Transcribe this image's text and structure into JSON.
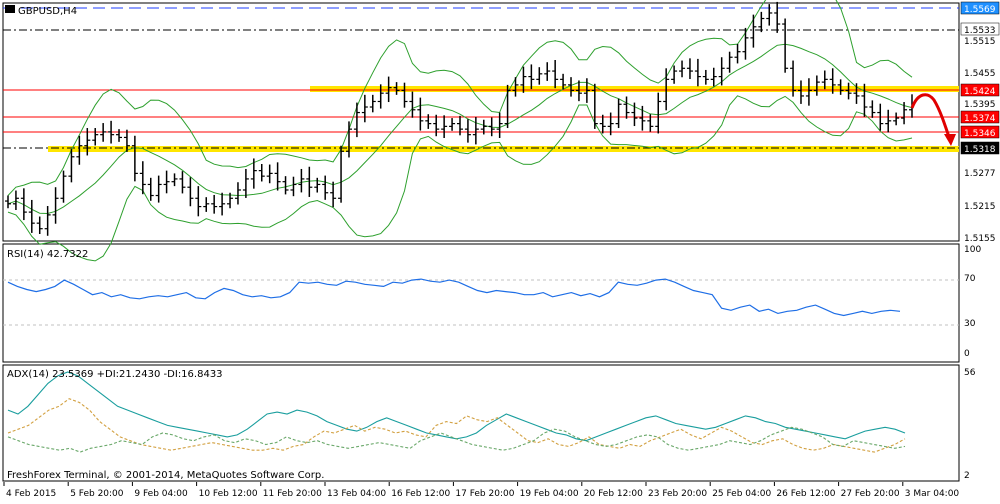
{
  "main": {
    "symbol_label": "GBPUSD,H4",
    "price_scale": [
      {
        "label": "1.5569",
        "boxed": true,
        "bg": "#1e90ff",
        "fg": "#ffffff"
      },
      {
        "label": "1.5533",
        "boxed": true,
        "bg": "#ffffff",
        "fg": "#000000"
      },
      {
        "label": "1.5515",
        "boxed": false
      },
      {
        "label": "1.5455",
        "boxed": false
      },
      {
        "label": "1.5424",
        "boxed": true,
        "bg": "#ff0000",
        "fg": "#ffffff"
      },
      {
        "label": "1.5395",
        "boxed": false
      },
      {
        "label": "1.5374",
        "boxed": true,
        "bg": "#ff0000",
        "fg": "#ffffff"
      },
      {
        "label": "1.5346",
        "boxed": true,
        "bg": "#ff0000",
        "fg": "#ffffff"
      },
      {
        "label": "1.5318",
        "boxed": true,
        "bg": "#000000",
        "fg": "#ffffff"
      },
      {
        "label": "1.5277",
        "boxed": false
      },
      {
        "label": "1.5215",
        "boxed": false
      },
      {
        "label": "1.5155",
        "boxed": false
      }
    ],
    "levels": {
      "resistance_band": 1.5424,
      "support_band": 1.5318,
      "red_lines": [
        1.5424,
        1.5374,
        1.5346
      ],
      "blue_dashed": 1.5569,
      "black_dashdot": [
        1.5533,
        1.5318
      ]
    },
    "forecast": "down"
  },
  "rsi": {
    "label": "RSI(14) 42.7322",
    "scale": [
      "100",
      "70",
      "30",
      "0"
    ],
    "levels": [
      70,
      30
    ]
  },
  "adx": {
    "label": "ADX(14) 23.5369 +DI:21.2430 -DI:16.8433",
    "scale": [
      "56",
      "2"
    ],
    "copyright": "FreshForex Terminal, © 2001-2014, MetaQuotes Software Corp."
  },
  "time_axis": [
    "4 Feb 2015",
    "5 Feb 20:00",
    "9 Feb 04:00",
    "10 Feb 12:00",
    "11 Feb 20:00",
    "13 Feb 04:00",
    "16 Feb 12:00",
    "17 Feb 20:00",
    "19 Feb 04:00",
    "20 Feb 12:00",
    "23 Feb 20:00",
    "25 Feb 04:00",
    "26 Feb 12:00",
    "27 Feb 20:00",
    "3 Mar 04:00"
  ],
  "chart_data": {
    "type": "candlestick",
    "bar_closes": [
      1.5215,
      1.5225,
      1.52,
      1.518,
      1.517,
      1.5195,
      1.5225,
      1.5265,
      1.53,
      1.532,
      1.533,
      1.534,
      1.5345,
      1.534,
      1.5335,
      1.532,
      1.527,
      1.525,
      1.523,
      1.525,
      1.5255,
      1.526,
      1.5245,
      1.5225,
      1.521,
      1.5215,
      1.521,
      1.5215,
      1.5225,
      1.524,
      1.526,
      1.5275,
      1.5265,
      1.527,
      1.5255,
      1.524,
      1.525,
      1.526,
      1.5245,
      1.525,
      1.5235,
      1.5225,
      1.531,
      1.535,
      1.538,
      1.539,
      1.54,
      1.5415,
      1.5425,
      1.542,
      1.54,
      1.5385,
      1.5365,
      1.536,
      1.535,
      1.5355,
      1.536,
      1.535,
      1.534,
      1.535,
      1.5355,
      1.535,
      1.536,
      1.542,
      1.543,
      1.5445,
      1.544,
      1.545,
      1.5455,
      1.544,
      1.543,
      1.542,
      1.5415,
      1.542,
      1.536,
      1.5355,
      1.536,
      1.5395,
      1.538,
      1.537,
      1.5365,
      1.5355,
      1.54,
      1.544,
      1.5455,
      1.546,
      1.5455,
      1.5445,
      1.544,
      1.5445,
      1.546,
      1.548,
      1.549,
      1.5515,
      1.5535,
      1.555,
      1.556,
      1.554,
      1.546,
      1.542,
      1.541,
      1.542,
      1.5435,
      1.544,
      1.543,
      1.542,
      1.5415,
      1.541,
      1.539,
      1.538,
      1.536,
      1.5365,
      1.537,
      1.5385,
      1.5395
    ],
    "rsi": [
      70,
      66,
      63,
      61,
      63,
      66,
      72,
      68,
      63,
      58,
      60,
      56,
      58,
      55,
      54,
      56,
      57,
      56,
      58,
      60,
      55,
      54,
      60,
      64,
      62,
      58,
      56,
      57,
      55,
      56,
      60,
      70,
      69,
      70,
      68,
      67,
      71,
      70,
      68,
      67,
      66,
      70,
      69,
      72,
      73,
      71,
      70,
      72,
      70,
      66,
      62,
      60,
      62,
      61,
      60,
      58,
      58,
      60,
      56,
      58,
      60,
      57,
      59,
      56,
      60,
      70,
      68,
      67,
      69,
      72,
      73,
      70,
      66,
      62,
      60,
      58,
      45,
      43,
      46,
      48,
      42,
      44,
      40,
      42,
      43,
      46,
      48,
      44,
      40,
      38,
      40,
      42,
      40,
      42,
      43,
      42
    ],
    "adx": [
      36,
      34,
      38,
      44,
      50,
      54,
      56,
      54,
      50,
      46,
      42,
      38,
      36,
      34,
      32,
      30,
      28,
      27,
      26,
      25,
      24,
      23,
      22,
      23,
      26,
      30,
      34,
      35,
      34,
      36,
      35,
      33,
      30,
      28,
      26,
      25,
      27,
      30,
      32,
      30,
      28,
      26,
      24,
      23,
      22,
      21,
      22,
      24,
      28,
      31,
      34,
      32,
      30,
      28,
      26,
      24,
      23,
      21,
      20,
      22,
      24,
      26,
      28,
      30,
      32,
      33,
      31,
      29,
      28,
      27,
      26,
      27,
      29,
      31,
      33,
      32,
      30,
      29,
      27,
      26,
      25,
      24,
      23,
      22,
      21,
      23,
      25,
      26,
      27,
      26,
      24
    ],
    "plus_di": [
      24,
      26,
      28,
      32,
      36,
      38,
      42,
      40,
      36,
      30,
      26,
      22,
      20,
      18,
      17,
      16,
      15,
      16,
      17,
      18,
      19,
      18,
      17,
      16,
      15,
      15,
      16,
      15,
      17,
      18,
      22,
      25,
      24,
      26,
      28,
      25,
      27,
      26,
      24,
      25,
      23,
      22,
      28,
      30,
      29,
      33,
      31,
      30,
      32,
      28,
      24,
      20,
      19,
      21,
      18,
      17,
      19,
      22,
      18,
      17,
      16,
      18,
      17,
      20,
      22,
      24,
      26,
      23,
      21,
      24,
      27,
      25,
      22,
      19,
      18,
      20,
      21,
      18,
      16,
      15,
      16,
      18,
      17,
      16,
      15,
      14,
      16,
      18,
      21
    ],
    "minus_di": [
      22,
      20,
      18,
      17,
      16,
      15,
      16,
      14,
      16,
      17,
      18,
      20,
      19,
      18,
      22,
      24,
      23,
      21,
      20,
      22,
      23,
      20,
      19,
      21,
      20,
      18,
      19,
      22,
      20,
      19,
      20,
      18,
      17,
      16,
      17,
      18,
      19,
      18,
      17,
      16,
      20,
      22,
      24,
      22,
      20,
      18,
      17,
      16,
      15,
      16,
      18,
      20,
      24,
      26,
      25,
      22,
      20,
      18,
      17,
      18,
      20,
      22,
      23,
      22,
      18,
      16,
      15,
      16,
      17,
      18,
      20,
      19,
      18,
      20,
      23,
      25,
      27,
      26,
      24,
      22,
      18,
      17,
      20,
      19,
      18,
      17,
      16,
      17
    ]
  }
}
